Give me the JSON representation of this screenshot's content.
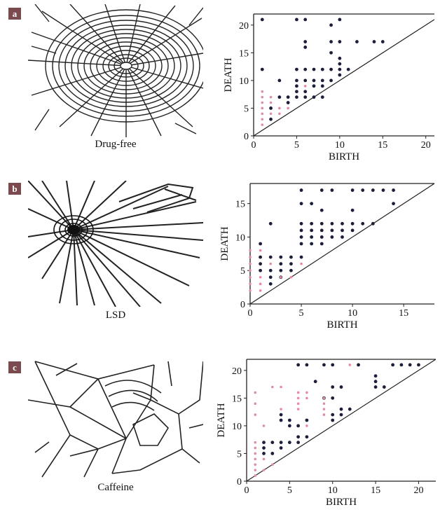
{
  "panels": [
    {
      "letter": "a",
      "caption": "Drug-free"
    },
    {
      "letter": "b",
      "caption": "LSD"
    },
    {
      "letter": "c",
      "caption": "Caffeine"
    }
  ],
  "colors": {
    "dark_points": "#1c1f3a",
    "pink_points": "#e48aa5",
    "badge": "#7a4a4f"
  },
  "chart_data": [
    {
      "type": "scatter",
      "xlabel": "BIRTH",
      "ylabel": "DEATH",
      "xlim": [
        0,
        21
      ],
      "ylim": [
        0,
        22
      ],
      "xticks": [
        0,
        5,
        10,
        15,
        20
      ],
      "yticks": [
        0,
        5,
        10,
        15,
        20
      ],
      "diagonal": true,
      "top_line": 22,
      "series": [
        {
          "color": "dark",
          "points": [
            [
              1,
              21
            ],
            [
              5,
              21
            ],
            [
              6,
              21
            ],
            [
              9,
              20
            ],
            [
              10,
              21
            ],
            [
              6,
              17
            ],
            [
              6,
              16
            ],
            [
              9,
              17
            ],
            [
              10,
              17
            ],
            [
              12,
              17
            ],
            [
              14,
              17
            ],
            [
              15,
              17
            ],
            [
              9,
              15
            ],
            [
              10,
              14
            ],
            [
              10,
              13
            ],
            [
              1,
              12
            ],
            [
              5,
              12
            ],
            [
              6,
              12
            ],
            [
              7,
              12
            ],
            [
              8,
              12
            ],
            [
              9,
              12
            ],
            [
              10,
              12
            ],
            [
              11,
              12
            ],
            [
              3,
              10
            ],
            [
              5,
              10
            ],
            [
              6,
              10
            ],
            [
              7,
              10
            ],
            [
              9,
              10
            ],
            [
              10,
              11
            ],
            [
              3,
              7
            ],
            [
              4,
              7
            ],
            [
              5,
              7
            ],
            [
              6,
              7
            ],
            [
              7,
              7
            ],
            [
              8,
              7
            ],
            [
              5,
              9
            ],
            [
              7,
              9
            ],
            [
              8,
              9
            ],
            [
              2,
              5
            ],
            [
              2,
              3
            ],
            [
              4,
              6
            ],
            [
              5,
              8
            ],
            [
              6,
              8
            ],
            [
              8,
              10
            ]
          ]
        },
        {
          "color": "pink",
          "points": [
            [
              1,
              8
            ],
            [
              1,
              7
            ],
            [
              1,
              6
            ],
            [
              1,
              5
            ],
            [
              1,
              4
            ],
            [
              1,
              3
            ],
            [
              1,
              2
            ],
            [
              2,
              6
            ],
            [
              2,
              4
            ],
            [
              3,
              5
            ],
            [
              3,
              4
            ],
            [
              4,
              5
            ],
            [
              2,
              7
            ],
            [
              6,
              9
            ]
          ]
        }
      ]
    },
    {
      "type": "scatter",
      "xlabel": "BIRTH",
      "ylabel": "DEATH",
      "xlim": [
        0,
        18
      ],
      "ylim": [
        0,
        18
      ],
      "xticks": [
        0,
        5,
        10,
        15
      ],
      "yticks": [
        0,
        5,
        10,
        15
      ],
      "diagonal": true,
      "top_line": 18,
      "series": [
        {
          "color": "dark",
          "points": [
            [
              5,
              17
            ],
            [
              7,
              17
            ],
            [
              8,
              17
            ],
            [
              10,
              17
            ],
            [
              11,
              17
            ],
            [
              12,
              17
            ],
            [
              13,
              17
            ],
            [
              14,
              17
            ],
            [
              5,
              15
            ],
            [
              6,
              15
            ],
            [
              14,
              15
            ],
            [
              7,
              14
            ],
            [
              10,
              14
            ],
            [
              2,
              12
            ],
            [
              5,
              12
            ],
            [
              6,
              12
            ],
            [
              7,
              12
            ],
            [
              8,
              12
            ],
            [
              9,
              12
            ],
            [
              10,
              12
            ],
            [
              11,
              12
            ],
            [
              12,
              12
            ],
            [
              5,
              11
            ],
            [
              6,
              11
            ],
            [
              7,
              11
            ],
            [
              8,
              11
            ],
            [
              9,
              11
            ],
            [
              10,
              11
            ],
            [
              6,
              10
            ],
            [
              7,
              10
            ],
            [
              8,
              10
            ],
            [
              9,
              10
            ],
            [
              5,
              9
            ],
            [
              6,
              9
            ],
            [
              7,
              9
            ],
            [
              1,
              9
            ],
            [
              1,
              7
            ],
            [
              2,
              7
            ],
            [
              3,
              7
            ],
            [
              4,
              7
            ],
            [
              5,
              7
            ],
            [
              1,
              6
            ],
            [
              3,
              6
            ],
            [
              4,
              6
            ],
            [
              1,
              5
            ],
            [
              2,
              5
            ],
            [
              3,
              5
            ],
            [
              4,
              5
            ],
            [
              2,
              4
            ],
            [
              3,
              4
            ],
            [
              2,
              3
            ],
            [
              5,
              10
            ]
          ]
        },
        {
          "color": "pink",
          "points": [
            [
              0,
              8
            ],
            [
              0,
              7
            ],
            [
              0,
              6
            ],
            [
              0,
              5
            ],
            [
              0,
              4
            ],
            [
              0,
              3
            ],
            [
              0,
              2
            ],
            [
              1,
              4
            ],
            [
              1,
              3
            ],
            [
              1,
              2
            ],
            [
              2,
              6
            ],
            [
              3,
              4
            ],
            [
              4,
              4
            ],
            [
              5,
              6
            ],
            [
              1,
              8
            ]
          ]
        }
      ]
    },
    {
      "type": "scatter",
      "xlabel": "BIRTH",
      "ylabel": "DEATH",
      "xlim": [
        0,
        22
      ],
      "ylim": [
        0,
        22
      ],
      "xticks": [
        0,
        5,
        10,
        15,
        20
      ],
      "yticks": [
        0,
        5,
        10,
        15,
        20
      ],
      "diagonal": true,
      "top_line": 22,
      "series": [
        {
          "color": "dark",
          "points": [
            [
              6,
              21
            ],
            [
              7,
              21
            ],
            [
              9,
              21
            ],
            [
              10,
              21
            ],
            [
              13,
              21
            ],
            [
              17,
              21
            ],
            [
              18,
              21
            ],
            [
              19,
              21
            ],
            [
              20,
              21
            ],
            [
              8,
              18
            ],
            [
              10,
              17
            ],
            [
              11,
              17
            ],
            [
              15,
              19
            ],
            [
              15,
              18
            ],
            [
              15,
              17
            ],
            [
              16,
              17
            ],
            [
              9,
              15
            ],
            [
              10,
              15
            ],
            [
              12,
              13
            ],
            [
              11,
              13
            ],
            [
              10,
              12
            ],
            [
              11,
              12
            ],
            [
              10,
              11
            ],
            [
              4,
              12
            ],
            [
              4,
              11
            ],
            [
              5,
              11
            ],
            [
              7,
              11
            ],
            [
              5,
              10
            ],
            [
              6,
              10
            ],
            [
              2,
              7
            ],
            [
              3,
              7
            ],
            [
              4,
              7
            ],
            [
              5,
              7
            ],
            [
              2,
              6
            ],
            [
              4,
              6
            ],
            [
              6,
              7
            ],
            [
              3,
              5
            ],
            [
              2,
              5
            ],
            [
              6,
              8
            ],
            [
              7,
              8
            ]
          ]
        },
        {
          "color": "pink",
          "points": [
            [
              1,
              16
            ],
            [
              1,
              14
            ],
            [
              1,
              12
            ],
            [
              1,
              7
            ],
            [
              1,
              6
            ],
            [
              1,
              5
            ],
            [
              1,
              4
            ],
            [
              1,
              3
            ],
            [
              1,
              2
            ],
            [
              1,
              1
            ],
            [
              2,
              10
            ],
            [
              2,
              4
            ],
            [
              3,
              17
            ],
            [
              4,
              17
            ],
            [
              4,
              13
            ],
            [
              6,
              16
            ],
            [
              6,
              15
            ],
            [
              6,
              14
            ],
            [
              6,
              13
            ],
            [
              7,
              16
            ],
            [
              7,
              15
            ],
            [
              7,
              10
            ],
            [
              9,
              15
            ],
            [
              9,
              12
            ],
            [
              9,
              14
            ],
            [
              9,
              13
            ],
            [
              12,
              21
            ],
            [
              3,
              3
            ],
            [
              2,
              2
            ]
          ]
        }
      ]
    }
  ]
}
